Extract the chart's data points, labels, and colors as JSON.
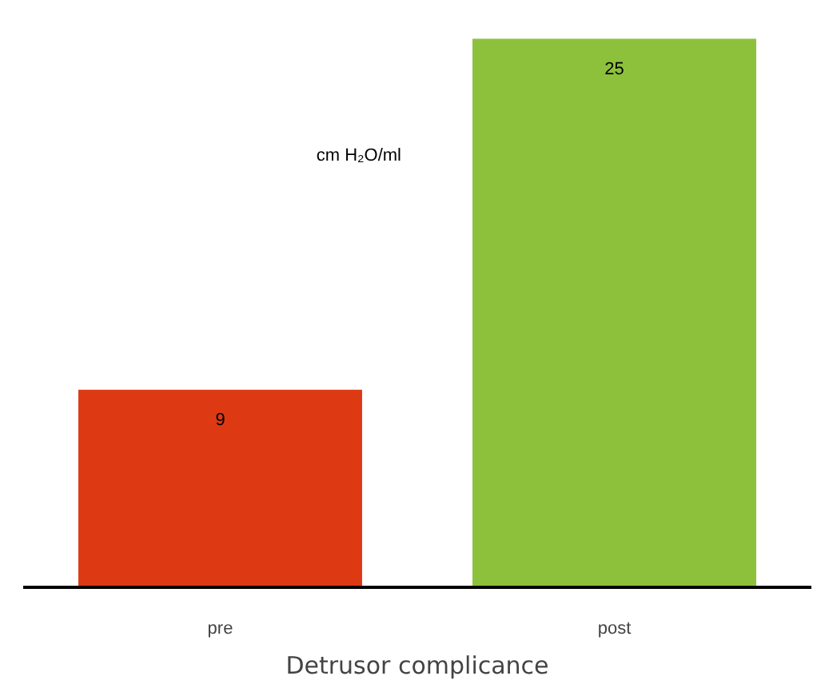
{
  "chart_data": {
    "type": "bar",
    "xlabel": "Detrusor complicance",
    "categories": [
      "pre",
      "post"
    ],
    "values": [
      9,
      25
    ],
    "colors": [
      "#dd3a14",
      "#8dc13c"
    ],
    "data_labels": true,
    "tick_labels": "x",
    "grid": false,
    "annotations": [
      "cm H₂O/ml"
    ]
  }
}
